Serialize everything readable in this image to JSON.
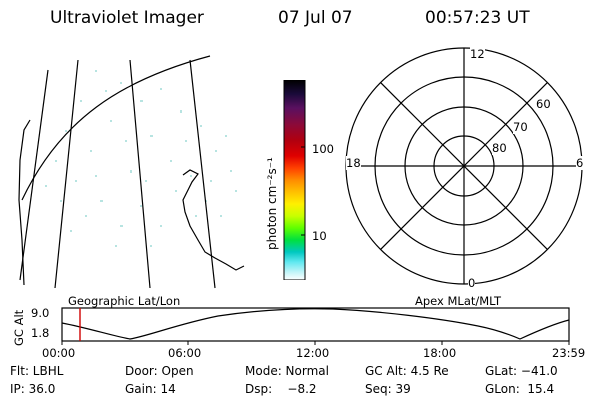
{
  "header": {
    "title": "Ultraviolet Imager",
    "date": "07 Jul 07",
    "time": "00:57:23 UT"
  },
  "colorbar": {
    "label": "photon cm⁻²s⁻¹",
    "ticks": [
      "100",
      "10"
    ],
    "colors": [
      "#000000",
      "#1a0a3a",
      "#5a1060",
      "#8a0a3a",
      "#b00010",
      "#e00000",
      "#ff4000",
      "#ff8c00",
      "#ffc000",
      "#fff000",
      "#c8ff00",
      "#60ff00",
      "#00e040",
      "#00c8c0",
      "#60e8f0",
      "#c0f4f8",
      "#ffffff"
    ]
  },
  "polar": {
    "mlt_labels": {
      "top": "12",
      "left": "18",
      "right": "6",
      "bottom": "0"
    },
    "lat_labels": [
      "60",
      "70",
      "80"
    ]
  },
  "timeline": {
    "left_label": "Geographic Lat/Lon",
    "right_label": "Apex MLat/MLT",
    "axis_label": "GC Alt",
    "y_ticks": [
      "9.0",
      "1.8"
    ],
    "x_ticks": [
      "00:00",
      "06:00",
      "12:00",
      "18:00",
      "23:59"
    ],
    "marker_color": "#d00000"
  },
  "info": {
    "filter": "Flt: LBHL",
    "door": "Door: Open",
    "mode": "Mode: Normal",
    "gc_alt": "GC Alt: 4.5 Re",
    "glat": "GLat: −41.0",
    "ip": "IP: 36.0",
    "gain": "Gain: 14",
    "dsp": "Dsp:    −8.2",
    "seq": "Seq: 39",
    "glon": "GLon:  15.4"
  }
}
